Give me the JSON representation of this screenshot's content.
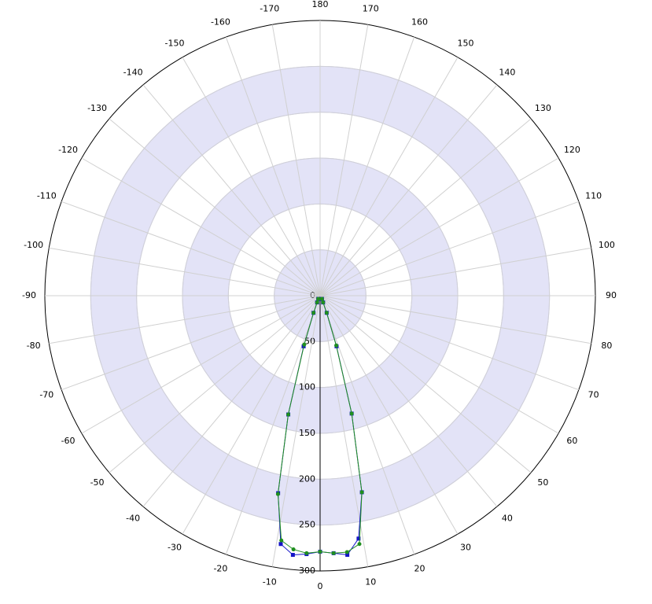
{
  "chart_data": {
    "type": "polar",
    "theta": [
      -30,
      -27,
      -24,
      -21,
      -18,
      -15,
      -12,
      -9,
      -6,
      -3,
      0,
      3,
      6,
      9,
      12,
      15,
      18,
      21,
      24,
      27,
      30
    ],
    "series": [
      {
        "color": "#1414c8",
        "marker": "square",
        "values": [
          4,
          4,
          8,
          20,
          58,
          134,
          220,
          274,
          284,
          282,
          279,
          281,
          284,
          268,
          219,
          133,
          58,
          20,
          8,
          4,
          4
        ]
      },
      {
        "color": "#1f8f1f",
        "marker": "circle",
        "values": [
          4,
          4,
          8,
          20,
          56,
          134,
          221,
          270,
          278,
          281,
          279,
          281,
          281,
          274,
          219,
          133,
          57,
          20,
          8,
          4,
          4
        ]
      }
    ],
    "rlim": [
      0,
      300
    ],
    "rticks": [
      0,
      50,
      100,
      150,
      200,
      250,
      300
    ],
    "thetaticks": [
      -170,
      -160,
      -150,
      -140,
      -130,
      -120,
      -110,
      -100,
      -90,
      -80,
      -70,
      -60,
      -50,
      -40,
      -30,
      -20,
      -10,
      0,
      10,
      20,
      30,
      40,
      50,
      60,
      70,
      80,
      90,
      100,
      110,
      120,
      130,
      140,
      150,
      160,
      170,
      180
    ],
    "band_color": "#e3e3f7",
    "grid": true
  }
}
